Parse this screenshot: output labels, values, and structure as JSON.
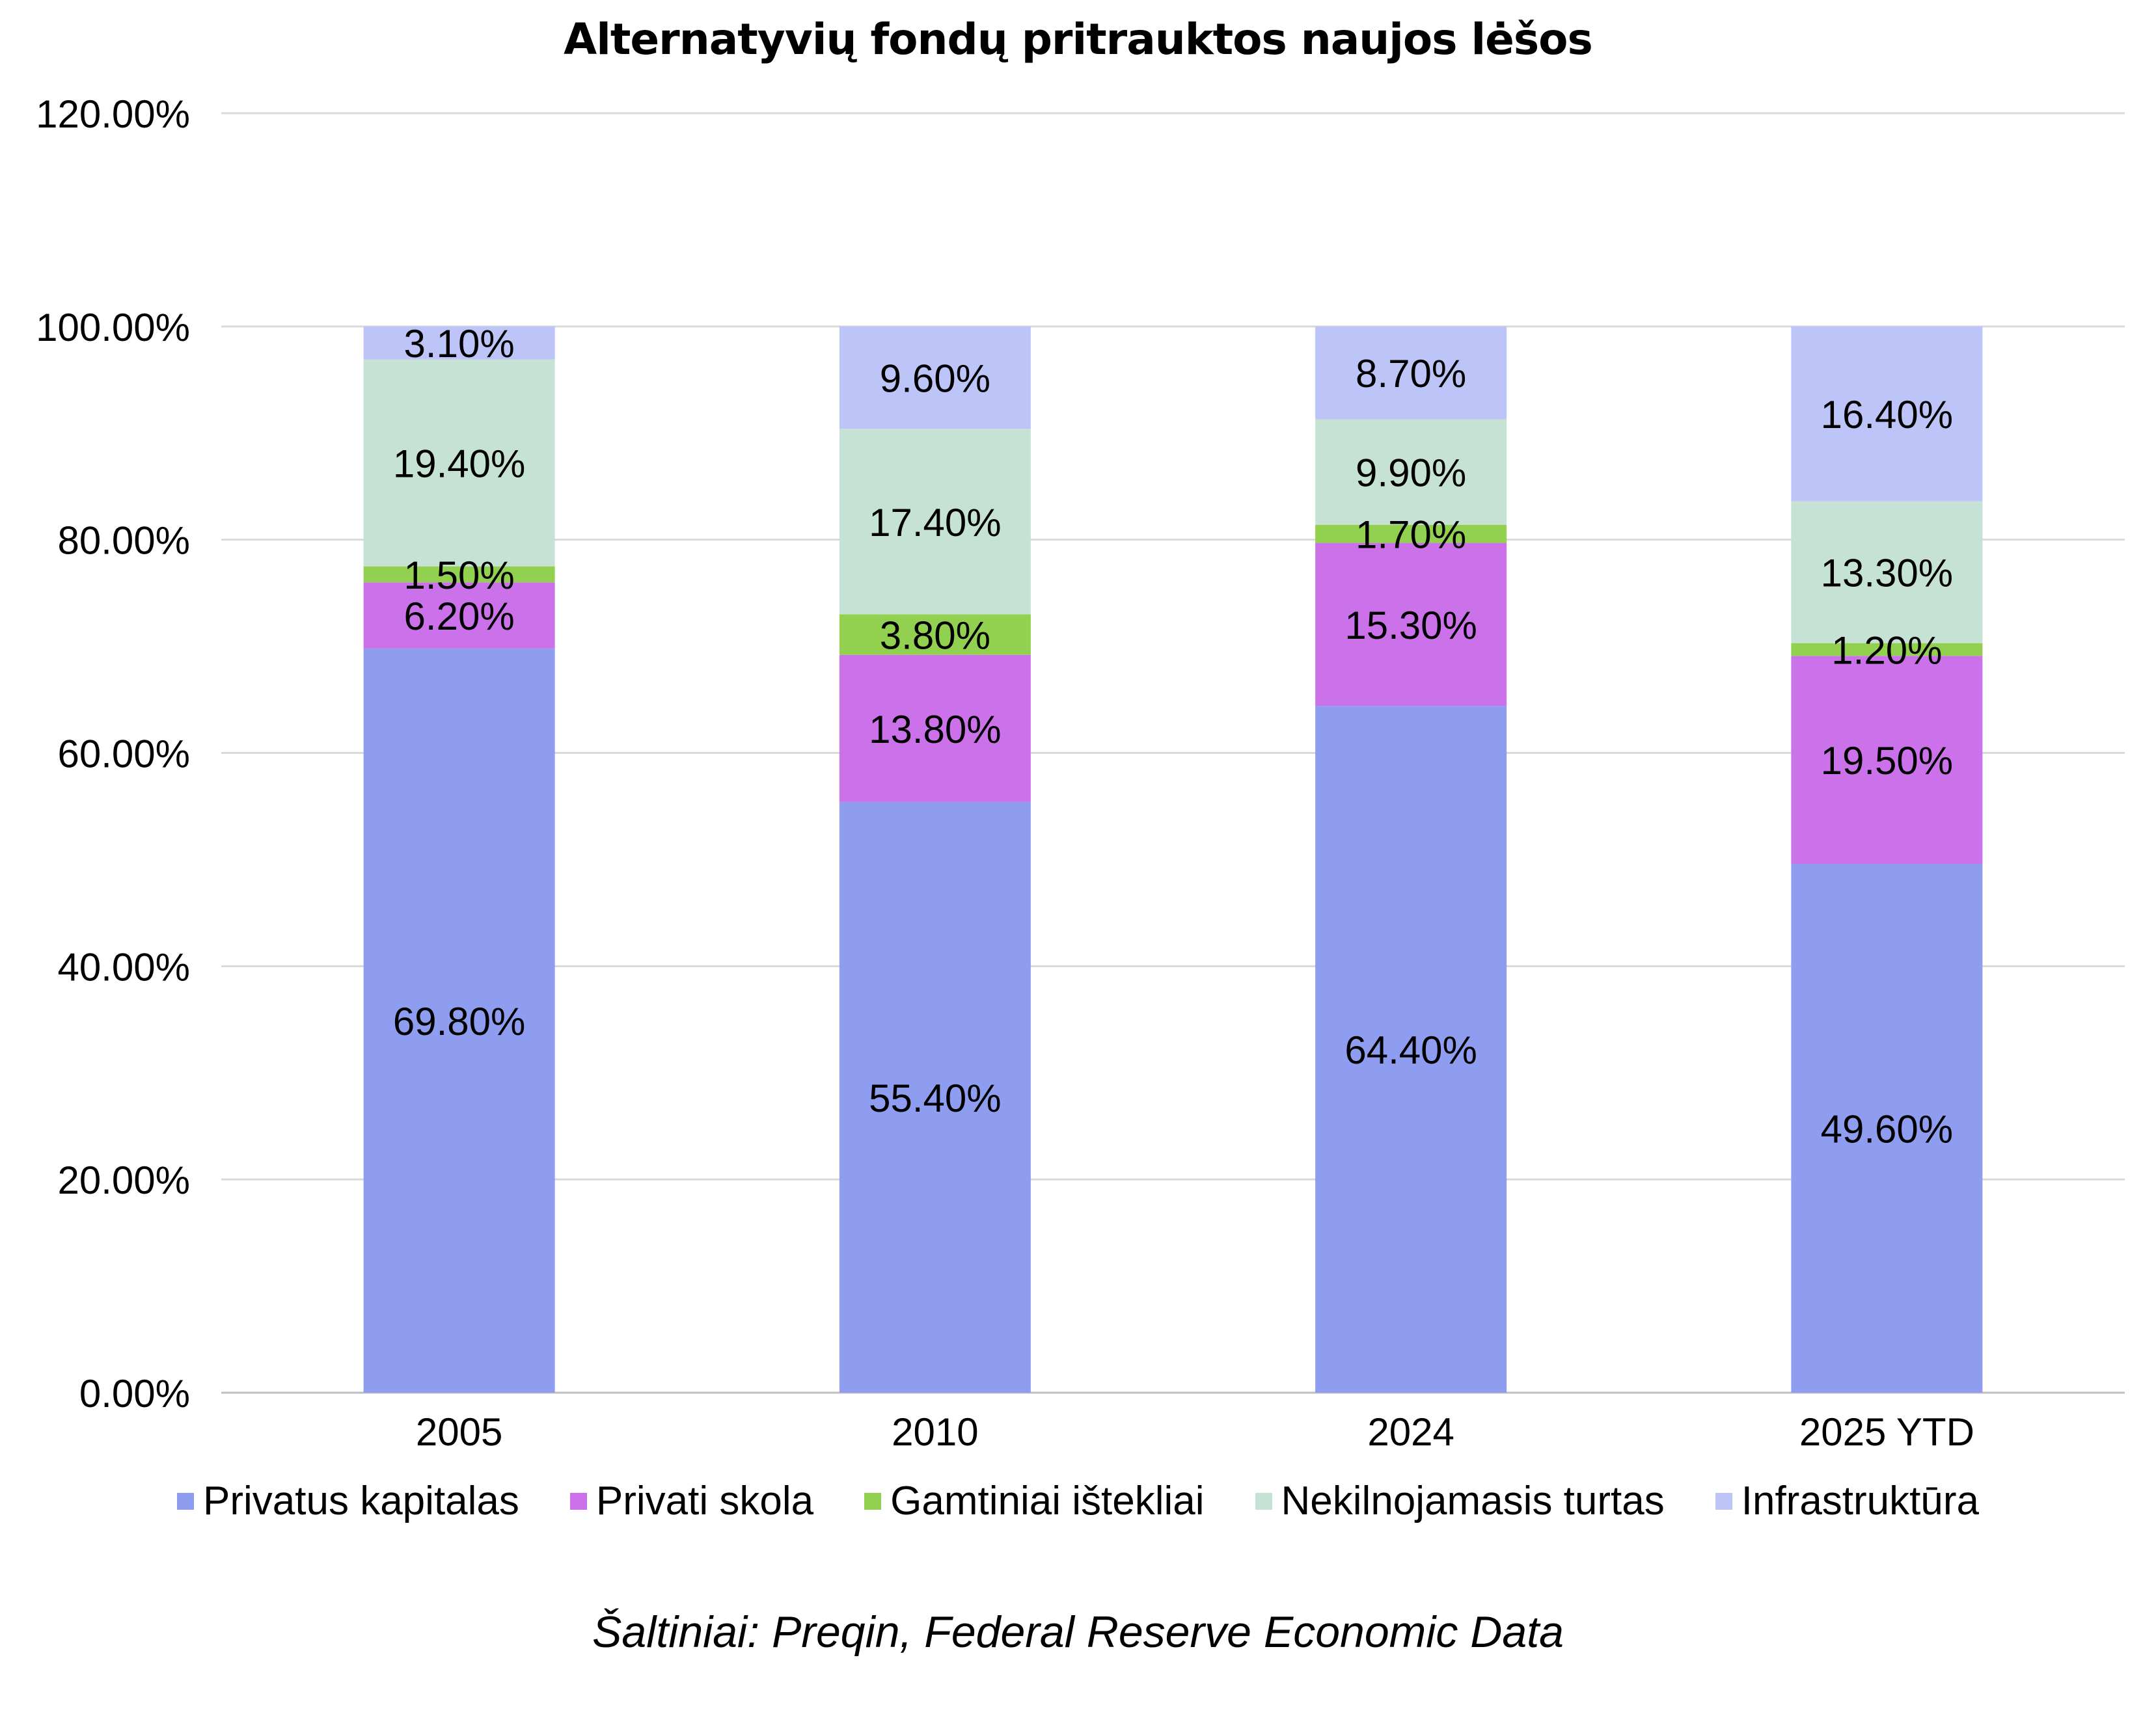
{
  "chart_data": {
    "type": "bar",
    "stacked": true,
    "title": "Alternatyvių fondų pritrauktos naujos lėšos",
    "categories": [
      "2005",
      "2010",
      "2024",
      "2025 YTD"
    ],
    "ylim": [
      0,
      120
    ],
    "y_ticks": [
      "0.00%",
      "20.00%",
      "40.00%",
      "60.00%",
      "80.00%",
      "100.00%",
      "120.00%"
    ],
    "y_tick_values": [
      0,
      20,
      40,
      60,
      80,
      100,
      120
    ],
    "grid": true,
    "legend_position": "bottom",
    "series": [
      {
        "name": "Privatus kapitalas",
        "color": "#8e9df0",
        "values": [
          69.8,
          55.4,
          64.4,
          49.6
        ],
        "labels": [
          "69.80%",
          "55.40%",
          "64.40%",
          "49.60%"
        ]
      },
      {
        "name": "Privati skola",
        "color": "#cb72ea",
        "values": [
          6.2,
          13.8,
          15.3,
          19.5
        ],
        "labels": [
          "6.20%",
          "13.80%",
          "15.30%",
          "19.50%"
        ]
      },
      {
        "name": "Gamtiniai ištekliai",
        "color": "#92d050",
        "values": [
          1.5,
          3.8,
          1.7,
          1.2
        ],
        "labels": [
          "1.50%",
          "3.80%",
          "1.70%",
          "1.20%"
        ]
      },
      {
        "name": "Nekilnojamasis turtas",
        "color": "#c5e2d5",
        "values": [
          19.4,
          17.4,
          9.9,
          13.3
        ],
        "labels": [
          "19.40%",
          "17.40%",
          "9.90%",
          "13.30%"
        ]
      },
      {
        "name": "Infrastruktūra",
        "color": "#bdc4f7",
        "values": [
          3.1,
          9.6,
          8.7,
          16.4
        ],
        "labels": [
          "3.10%",
          "9.60%",
          "8.70%",
          "16.40%"
        ]
      }
    ]
  },
  "source": "Šaltiniai: Preqin, Federal Reserve Economic Data"
}
